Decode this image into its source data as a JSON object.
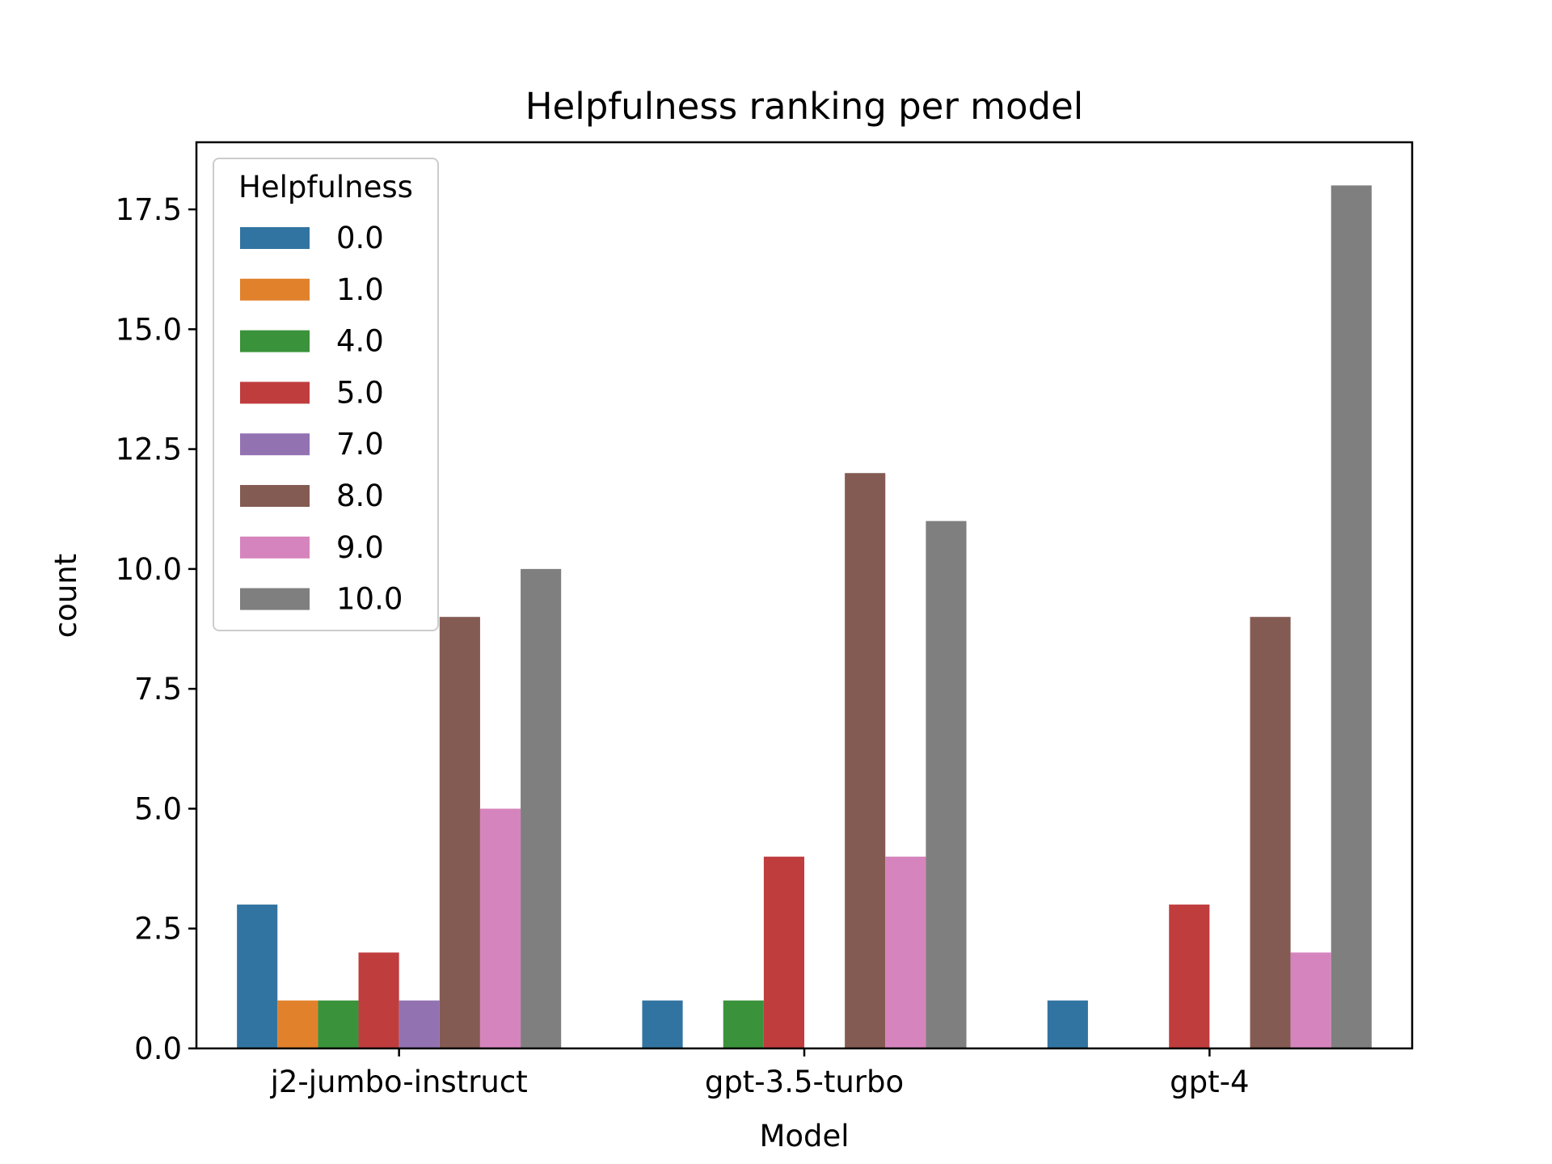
{
  "chart_data": {
    "type": "bar",
    "title": "Helpfulness ranking per model",
    "xlabel": "Model",
    "ylabel": "count",
    "categories": [
      "j2-jumbo-instruct",
      "gpt-3.5-turbo",
      "gpt-4"
    ],
    "ylim": [
      0,
      18.9
    ],
    "yticks": [
      "0.0",
      "2.5",
      "5.0",
      "7.5",
      "10.0",
      "12.5",
      "15.0",
      "17.5"
    ],
    "grid": false,
    "legend": {
      "title": "Helpfulness",
      "placement": "top-left"
    },
    "series": [
      {
        "name": "0.0",
        "color": "#3274a1",
        "values": [
          3,
          1,
          1
        ]
      },
      {
        "name": "1.0",
        "color": "#e1812c",
        "values": [
          1,
          0,
          0
        ]
      },
      {
        "name": "4.0",
        "color": "#3a923a",
        "values": [
          1,
          1,
          0
        ]
      },
      {
        "name": "5.0",
        "color": "#c03d3e",
        "values": [
          2,
          4,
          3
        ]
      },
      {
        "name": "7.0",
        "color": "#9372b2",
        "values": [
          1,
          0,
          0
        ]
      },
      {
        "name": "8.0",
        "color": "#845b53",
        "values": [
          9,
          12,
          9
        ]
      },
      {
        "name": "9.0",
        "color": "#d684bd",
        "values": [
          5,
          4,
          2
        ]
      },
      {
        "name": "10.0",
        "color": "#7f7f7f",
        "values": [
          10,
          11,
          18
        ]
      }
    ]
  }
}
